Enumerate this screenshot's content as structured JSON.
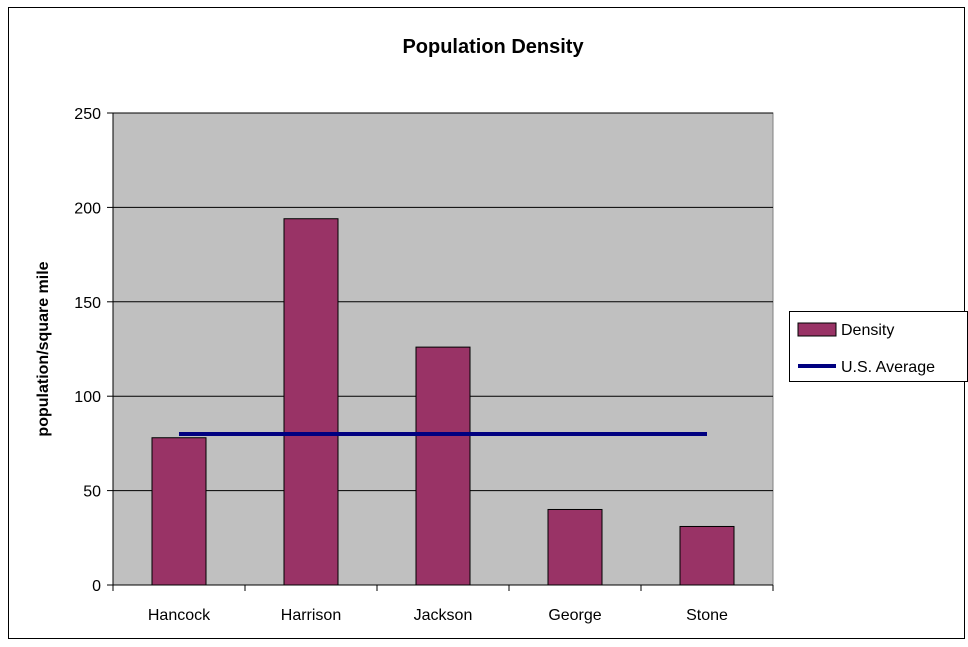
{
  "chart_data": {
    "type": "bar",
    "title": "Population Density",
    "xlabel": "",
    "ylabel": "population/square mile",
    "categories": [
      "Hancock",
      "Harrison",
      "Jackson",
      "George",
      "Stone"
    ],
    "series": [
      {
        "name": "Density",
        "type": "bar",
        "values": [
          78,
          194,
          126,
          40,
          31
        ],
        "color": "#993366"
      },
      {
        "name": "U.S. Average",
        "type": "line",
        "values": [
          80,
          80,
          80,
          80,
          80
        ],
        "color": "#000080"
      }
    ],
    "ylim": [
      0,
      250
    ],
    "yticks": [
      0,
      50,
      100,
      150,
      200,
      250
    ],
    "grid": true,
    "legend_position": "right",
    "plot_background": "#c0c0c0"
  }
}
